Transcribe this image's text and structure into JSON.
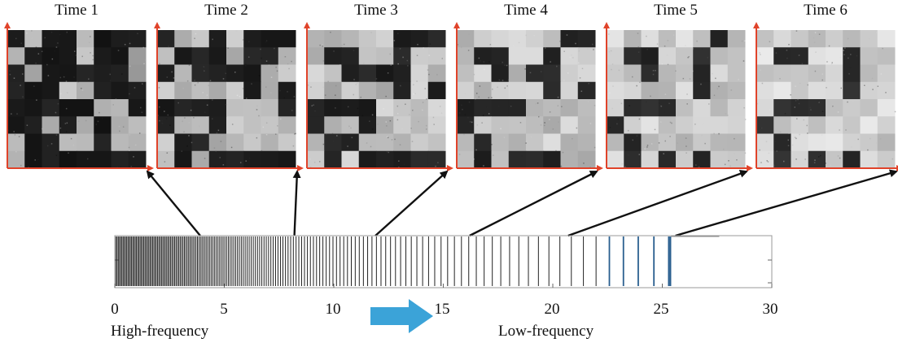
{
  "panels": [
    {
      "title": "Time 1",
      "time": 3.9
    },
    {
      "title": "Time 2",
      "time": 8.2
    },
    {
      "title": "Time 3",
      "time": 11.9
    },
    {
      "title": "Time 4",
      "time": 16.2
    },
    {
      "title": "Time 5",
      "time": 20.7
    },
    {
      "title": "Time 6",
      "time": 25.6
    }
  ],
  "axis": {
    "ticks": [
      "0",
      "5",
      "10",
      "15",
      "20",
      "25",
      "30"
    ],
    "range": [
      0,
      30
    ]
  },
  "captions": {
    "left": "High-frequency",
    "right": "Low-frequency"
  },
  "colors": {
    "panel_axes": "#e0432a",
    "connector": "#111111",
    "direction_arrow": "#3ba3d8",
    "spike": "#222222",
    "spike_late": "#2a5f8f",
    "frame": "#999999"
  },
  "icons": [
    "direction-arrow-icon"
  ]
}
